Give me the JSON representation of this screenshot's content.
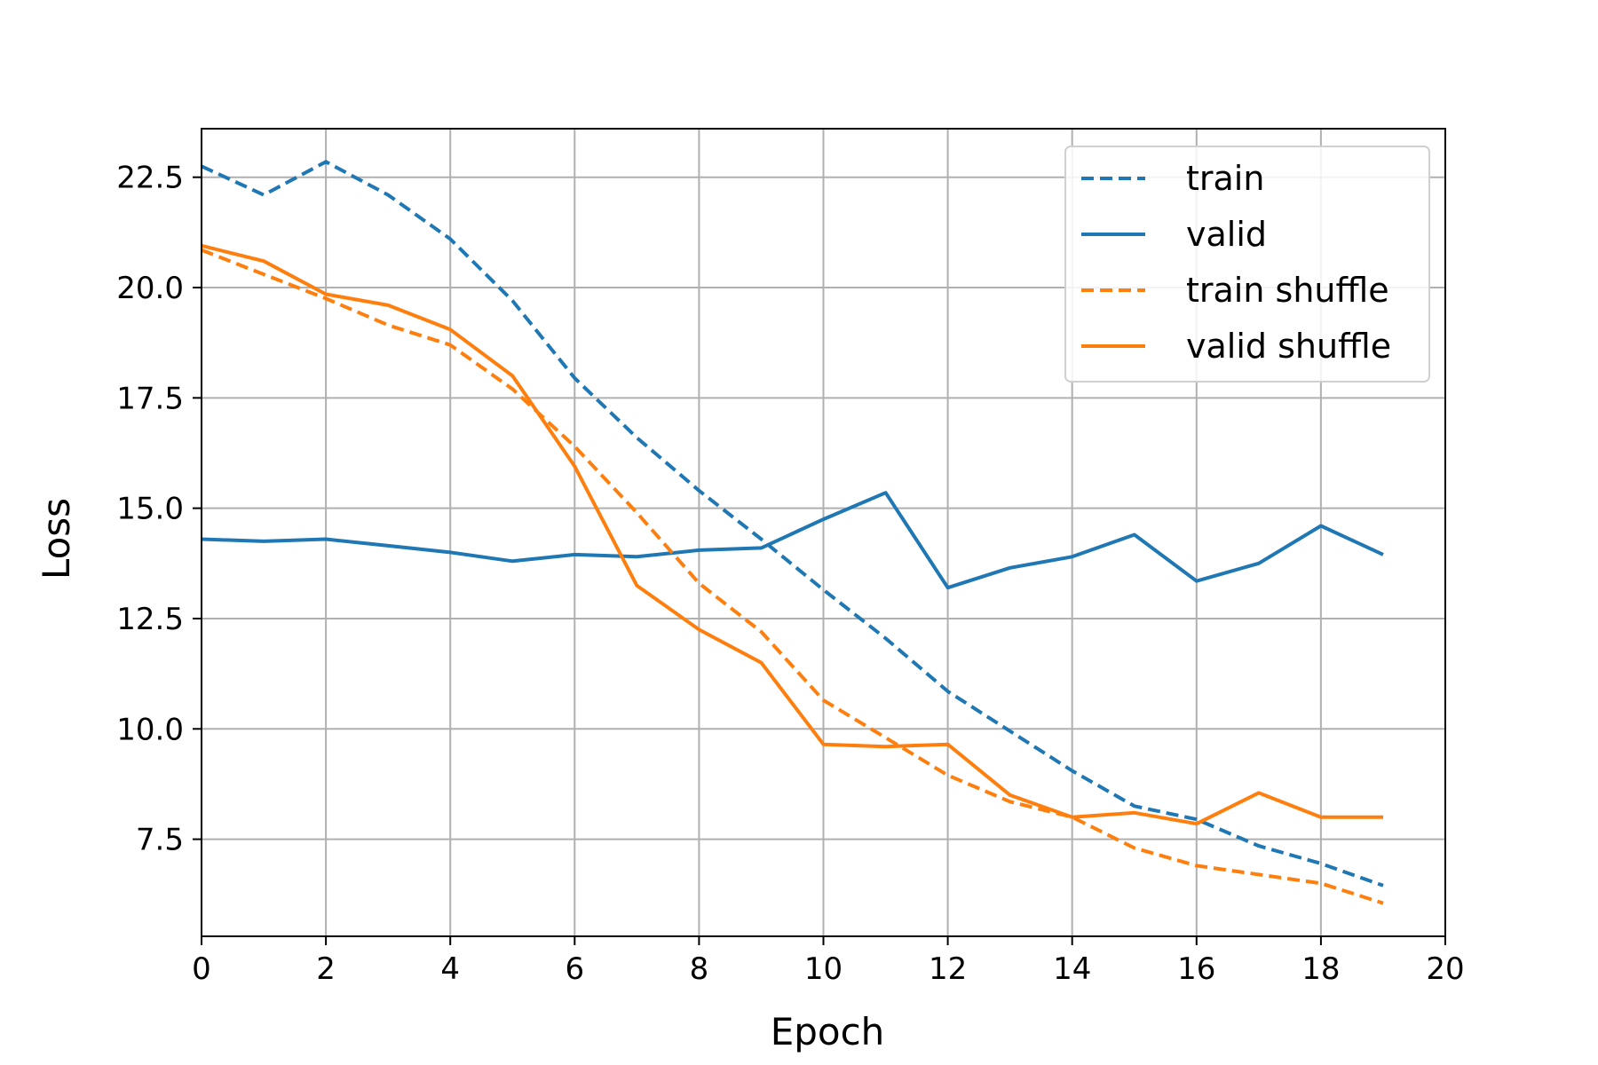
{
  "chart_data": {
    "type": "line",
    "xlabel": "Epoch",
    "ylabel": "Loss",
    "xlim": [
      0,
      20
    ],
    "ylim": [
      5.3,
      23.6
    ],
    "xticks": [
      0,
      2,
      4,
      6,
      8,
      10,
      12,
      14,
      16,
      18,
      20
    ],
    "yticks": [
      7.5,
      10.0,
      12.5,
      15.0,
      17.5,
      20.0,
      22.5
    ],
    "xtick_labels": [
      "0",
      "2",
      "4",
      "6",
      "8",
      "10",
      "12",
      "14",
      "16",
      "18",
      "20"
    ],
    "ytick_labels": [
      "7.5",
      "10.0",
      "12.5",
      "15.0",
      "17.5",
      "20.0",
      "22.5"
    ],
    "grid": true,
    "legend_position": "top-right",
    "x": [
      0,
      1,
      2,
      3,
      4,
      5,
      6,
      7,
      8,
      9,
      10,
      11,
      12,
      13,
      14,
      15,
      16,
      17,
      18,
      19
    ],
    "series": [
      {
        "name": "train",
        "color": "#1f77b4",
        "style": "dashed",
        "values": [
          22.75,
          22.1,
          22.85,
          22.1,
          21.1,
          19.7,
          17.95,
          16.6,
          15.4,
          14.3,
          13.15,
          12.05,
          10.85,
          9.95,
          9.05,
          8.25,
          7.95,
          7.35,
          6.95,
          6.45
        ]
      },
      {
        "name": "valid",
        "color": "#1f77b4",
        "style": "solid",
        "values": [
          14.3,
          14.25,
          14.3,
          14.15,
          14.0,
          13.8,
          13.95,
          13.9,
          14.05,
          14.1,
          14.75,
          15.35,
          13.2,
          13.65,
          13.9,
          14.4,
          13.35,
          13.75,
          14.6,
          13.95
        ]
      },
      {
        "name": "train shuffle",
        "color": "#ff7f0e",
        "style": "dashed",
        "values": [
          20.85,
          20.3,
          19.75,
          19.15,
          18.7,
          17.7,
          16.4,
          14.9,
          13.3,
          12.2,
          10.65,
          9.8,
          8.95,
          8.35,
          8.0,
          7.3,
          6.9,
          6.7,
          6.5,
          6.05
        ]
      },
      {
        "name": "valid shuffle",
        "color": "#ff7f0e",
        "style": "solid",
        "values": [
          20.95,
          20.6,
          19.85,
          19.6,
          19.05,
          18.0,
          15.95,
          13.25,
          12.25,
          11.5,
          9.65,
          9.6,
          9.65,
          8.5,
          8.0,
          8.1,
          7.85,
          8.55,
          8.0,
          8.0
        ]
      }
    ]
  }
}
